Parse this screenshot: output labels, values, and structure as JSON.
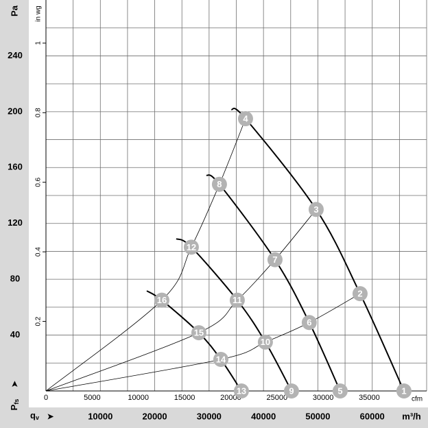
{
  "chart_data": {
    "type": "line",
    "y_label": "Pa",
    "y2_label": "in wg",
    "x_label": "m³/h",
    "x2_label": "cfm",
    "x_axis_name": {
      "main": "q",
      "sub": "v"
    },
    "y_axis_name": {
      "main": "P",
      "sub": "fs"
    },
    "xlim": [
      0,
      70000
    ],
    "xticks": [
      10000,
      20000,
      30000,
      40000,
      50000,
      60000
    ],
    "x2lim": [
      0,
      41200
    ],
    "x2ticks": [
      0,
      5000,
      10000,
      15000,
      20000,
      25000,
      30000,
      35000
    ],
    "ylim": [
      0,
      280
    ],
    "yticks": [
      40,
      80,
      120,
      160,
      200,
      240
    ],
    "y2lim": [
      0,
      1.124
    ],
    "y2ticks": [
      0.2,
      0.4,
      0.6,
      0.8,
      1
    ],
    "xgrid": [
      5000,
      10000,
      15000,
      20000,
      25000,
      30000,
      35000,
      40000,
      45000,
      50000,
      55000,
      60000,
      65000,
      70000
    ],
    "ygrid": [
      20,
      40,
      60,
      80,
      100,
      120,
      140,
      160,
      180,
      200,
      220,
      240,
      260
    ],
    "grid": true,
    "fan_curves": [
      {
        "color": "#000000",
        "x": [
          34100,
          36700,
          49690,
          57760,
          65830
        ],
        "values": [
          201.7,
          195,
          130,
          69.7,
          0
        ]
      },
      {
        "color": "#000000",
        "x": [
          29510,
          31900,
          42120,
          48420,
          54100
        ],
        "values": [
          154.6,
          148,
          94,
          49,
          0
        ]
      },
      {
        "color": "#000000",
        "x": [
          23960,
          26730,
          35180,
          40350,
          45150
        ],
        "values": [
          109,
          103,
          65,
          35,
          0
        ]
      },
      {
        "color": "#000000",
        "x": [
          18540,
          21310,
          28120,
          32160,
          35940
        ],
        "values": [
          71.7,
          65,
          41.7,
          22.6,
          0
        ]
      }
    ],
    "system_curves": [
      {
        "color": "#000000",
        "x": [
          0,
          21310,
          26730,
          31900,
          36700
        ],
        "values": [
          0,
          65,
          103,
          148,
          195
        ]
      },
      {
        "color": "#000000",
        "x": [
          0,
          28120,
          35180,
          42120,
          49690
        ],
        "values": [
          0,
          41.7,
          65,
          94,
          130
        ]
      },
      {
        "color": "#000000",
        "x": [
          0,
          32160,
          40350,
          48420,
          57760
        ],
        "values": [
          0,
          22.6,
          35,
          49,
          69.7
        ]
      }
    ],
    "marker_color": "#b3b3b3",
    "points": [
      {
        "label": "1",
        "x": 65830,
        "y": 0
      },
      {
        "label": "2",
        "x": 57760,
        "y": 69.7
      },
      {
        "label": "3",
        "x": 49690,
        "y": 130
      },
      {
        "label": "4",
        "x": 36700,
        "y": 195
      },
      {
        "label": "5",
        "x": 54100,
        "y": 0
      },
      {
        "label": "6",
        "x": 48420,
        "y": 49
      },
      {
        "label": "7",
        "x": 42120,
        "y": 94
      },
      {
        "label": "8",
        "x": 31900,
        "y": 148
      },
      {
        "label": "9",
        "x": 45150,
        "y": 0
      },
      {
        "label": "10",
        "x": 40350,
        "y": 35
      },
      {
        "label": "11",
        "x": 35180,
        "y": 65
      },
      {
        "label": "12",
        "x": 26730,
        "y": 103
      },
      {
        "label": "13",
        "x": 35940,
        "y": 0
      },
      {
        "label": "14",
        "x": 32160,
        "y": 22.6
      },
      {
        "label": "15",
        "x": 28120,
        "y": 41.7
      },
      {
        "label": "16",
        "x": 21310,
        "y": 65
      }
    ]
  }
}
